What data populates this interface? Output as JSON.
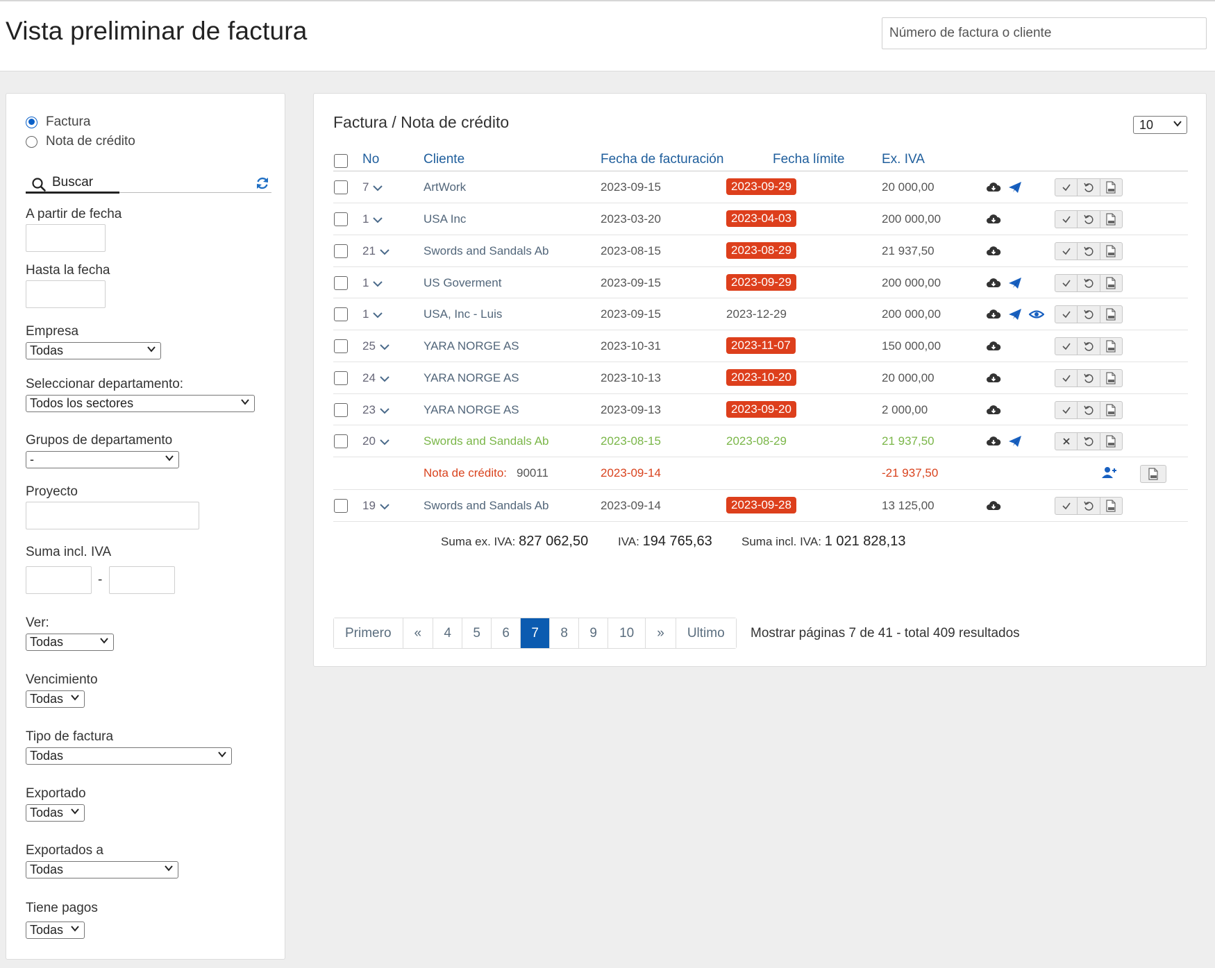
{
  "header": {
    "title": "Vista preliminar de factura",
    "search_placeholder": "Número de factura o cliente"
  },
  "filters": {
    "type_options": [
      {
        "label": "Factura",
        "selected": true
      },
      {
        "label": "Nota de crédito",
        "selected": false
      }
    ],
    "search_tab": "Buscar",
    "from_date_label": "A partir de fecha",
    "to_date_label": "Hasta la fecha",
    "company": {
      "label": "Empresa",
      "value": "Todas"
    },
    "department": {
      "label": "Seleccionar departamento:",
      "value": "Todos los sectores"
    },
    "department_groups": {
      "label": "Grupos de departamento",
      "value": "-"
    },
    "project_label": "Proyecto",
    "sum_label": "Suma incl. IVA",
    "sum_separator": "-",
    "view": {
      "label": "Ver:",
      "value": "Todas"
    },
    "due": {
      "label": "Vencimiento",
      "value": "Todas"
    },
    "invoice_type": {
      "label": "Tipo de factura",
      "value": "Todas"
    },
    "exported": {
      "label": "Exportado",
      "value": "Todas"
    },
    "exported_to": {
      "label": "Exportados a",
      "value": "Todas"
    },
    "has_payments": {
      "label": "Tiene pagos",
      "value": "Todas"
    }
  },
  "main": {
    "title": "Factura / Nota de crédito",
    "per_page": "10",
    "columns": [
      "No",
      "Cliente",
      "Fecha de facturación",
      "Fecha límite",
      "Ex. IVA"
    ],
    "rows": [
      {
        "no": "7",
        "client": "ArtWork",
        "invoice_date": "2023-09-15",
        "due_date": "2023-09-29",
        "overdue": true,
        "amount": "20 000,00"
      },
      {
        "no": "1",
        "client": "USA Inc",
        "invoice_date": "2023-03-20",
        "due_date": "2023-04-03",
        "overdue": true,
        "amount": "200 000,00"
      },
      {
        "no": "21",
        "client": "Swords and Sandals Ab",
        "invoice_date": "2023-08-15",
        "due_date": "2023-08-29",
        "overdue": true,
        "amount": "21 937,50"
      },
      {
        "no": "1",
        "client": "US Goverment",
        "invoice_date": "2023-09-15",
        "due_date": "2023-09-29",
        "overdue": true,
        "amount": "200 000,00"
      },
      {
        "no": "1",
        "client": "USA, Inc - Luis",
        "invoice_date": "2023-09-15",
        "due_date": "2023-12-29",
        "overdue": false,
        "amount": "200 000,00"
      },
      {
        "no": "25",
        "client": "YARA NORGE AS",
        "invoice_date": "2023-10-31",
        "due_date": "2023-11-07",
        "overdue": true,
        "amount": "150 000,00"
      },
      {
        "no": "24",
        "client": "YARA NORGE AS",
        "invoice_date": "2023-10-13",
        "due_date": "2023-10-20",
        "overdue": true,
        "amount": "20 000,00"
      },
      {
        "no": "23",
        "client": "YARA NORGE AS",
        "invoice_date": "2023-09-13",
        "due_date": "2023-09-20",
        "overdue": true,
        "amount": "2 000,00"
      },
      {
        "no": "20",
        "client": "Swords and Sandals Ab",
        "invoice_date": "2023-08-15",
        "due_date": "2023-08-29",
        "overdue": false,
        "amount": "21 937,50"
      },
      {
        "no": "19",
        "client": "Swords and Sandals Ab",
        "invoice_date": "2023-09-14",
        "due_date": "2023-09-28",
        "overdue": true,
        "amount": "13 125,00"
      }
    ],
    "credit_note": {
      "label": "Nota de crédito:",
      "number": "90011",
      "date": "2023-09-14",
      "amount": "-21 937,50"
    },
    "totals": {
      "ex_vat_label": "Suma ex. IVA:",
      "ex_vat": "827 062,50",
      "vat_label": "IVA:",
      "vat": "194 765,63",
      "incl_vat_label": "Suma incl. IVA:",
      "incl_vat": "1 021 828,13"
    },
    "pagination": {
      "first": "Primero",
      "prev": "«",
      "pages": [
        "4",
        "5",
        "6",
        "7",
        "8",
        "9",
        "10"
      ],
      "active": "7",
      "next": "»",
      "last": "Ultimo",
      "info_prefix": "Mostrar páginas",
      "current": "7",
      "of": "de",
      "total_pages": "41",
      "total_prefix": "- total",
      "total_results": "409",
      "results": "resultados"
    }
  },
  "colors": {
    "overdue_badge": "#dd3f1c",
    "paid_green": "#7ab648",
    "link_blue": "#1f5e9c",
    "active_page": "#0b5bb0"
  }
}
